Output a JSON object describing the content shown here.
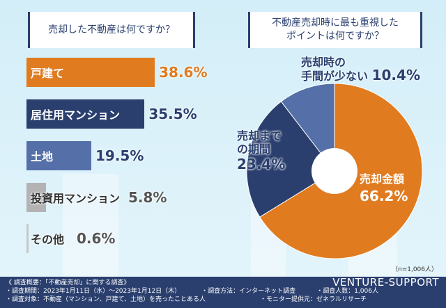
{
  "questions": {
    "left": "売却した不動産は何ですか？",
    "right_line1": "不動産売却時に最も重視した",
    "right_line2": "ポイントは何ですか？"
  },
  "chart_data": [
    {
      "type": "bar",
      "orientation": "horizontal",
      "categories": [
        "戸建て",
        "居住用マンション",
        "土地",
        "投資用マンション",
        "その他"
      ],
      "values": [
        38.6,
        35.5,
        19.5,
        5.8,
        0.6
      ],
      "value_labels": [
        "38.6%",
        "35.5%",
        "19.5%",
        "5.8%",
        "0.6%"
      ],
      "colors": [
        "#e07b20",
        "#2a3f6e",
        "#5570a8",
        "#b3b3b3",
        "#c8c8c8"
      ]
    },
    {
      "type": "pie",
      "donut": true,
      "categories": [
        "売却金額",
        "売却までの期間",
        "売却時の手間が少ない"
      ],
      "values": [
        66.2,
        23.4,
        10.4
      ],
      "value_labels": [
        "66.2%",
        "23.4%",
        "10.4%"
      ],
      "colors": [
        "#e07b20",
        "#2a3f6e",
        "#5570a8"
      ],
      "pie_labels": {
        "a": "売却金額",
        "b1": "売却まで",
        "b2": "の期間",
        "c1": "売却時の",
        "c2": "手間が少ない"
      }
    }
  ],
  "sample_note": "（n=1,006人）",
  "footer": {
    "line1": "《 調査概要：「不動産売却」に関する調査》",
    "line2a": "・調査期間：2023年1月11日（水）～2023年1月12日（木）",
    "line2b": "・調査方法：インターネット調査",
    "line2c": "・調査人数：1,006人",
    "line3a": "・調査対象：不動産（マンション、戸建て、土地）を売ったことある人",
    "line3b": "・モニター提供元：ゼネラルリサーチ",
    "brand": "VENTURE-SUPPORT"
  }
}
